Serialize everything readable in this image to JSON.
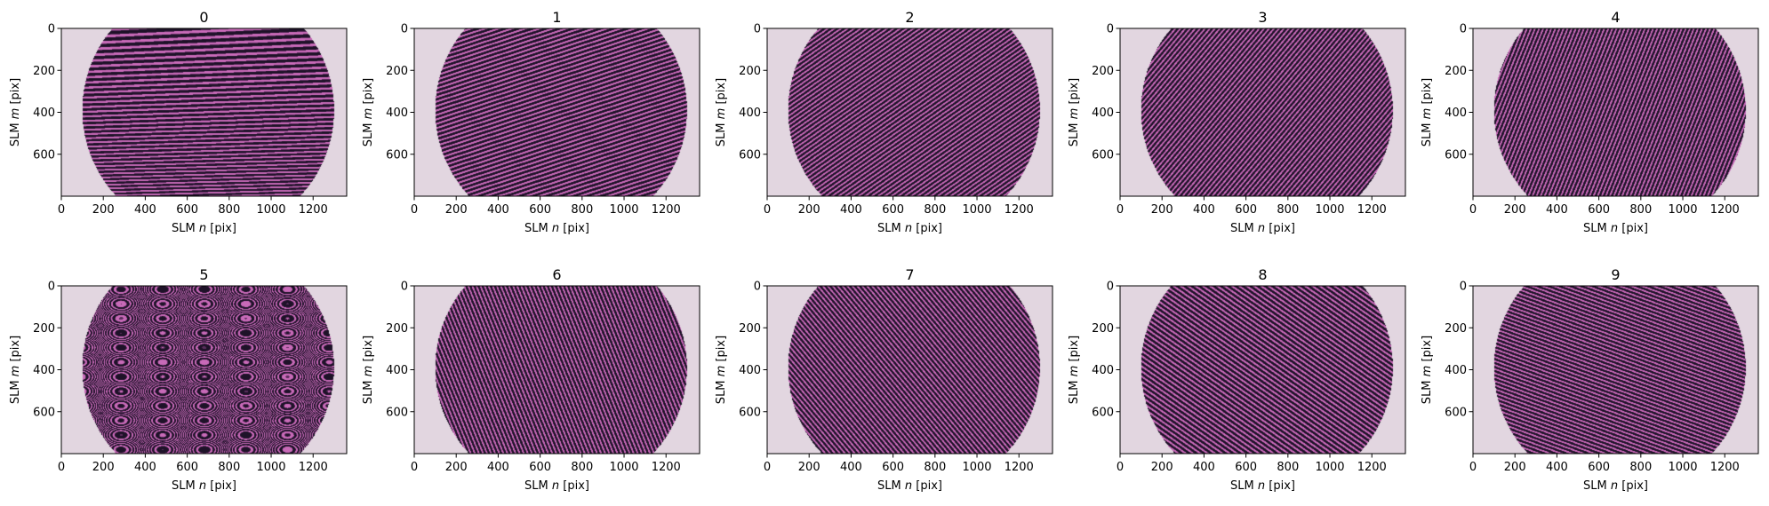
{
  "chart_data": {
    "type": "heatmap",
    "layout": {
      "rows": 2,
      "cols": 5
    },
    "xlabel": {
      "prefix": "SLM ",
      "var": "n",
      "suffix": " [pix]"
    },
    "ylabel": {
      "prefix": "SLM ",
      "var": "m",
      "suffix": " [pix]"
    },
    "image_extent": {
      "x": [
        0,
        1360
      ],
      "y": [
        0,
        800
      ]
    },
    "y_inverted": true,
    "xticks": [
      0,
      200,
      400,
      600,
      800,
      1000,
      1200
    ],
    "yticks": [
      0,
      200,
      400,
      600
    ],
    "aperture": {
      "shape": "circle",
      "center_n": 700,
      "center_m": 390,
      "radius_pix": 600
    },
    "colors": {
      "background": "#e2d6e0",
      "fringe_dark": "#1e1228",
      "fringe_light": "#c86ab8",
      "fringe_mid": "#5a2d5c"
    },
    "panels": [
      {
        "title": "0",
        "pattern": "fringes",
        "orientation_deg": 88,
        "period_pix": 22,
        "curvature": 0.15
      },
      {
        "title": "1",
        "pattern": "fringes",
        "orientation_deg": 72,
        "period_pix": 20,
        "curvature": 0
      },
      {
        "title": "2",
        "pattern": "fringes",
        "orientation_deg": 55,
        "period_pix": 18,
        "curvature": 0
      },
      {
        "title": "3",
        "pattern": "fringes",
        "orientation_deg": 40,
        "period_pix": 18,
        "curvature": 0
      },
      {
        "title": "4",
        "pattern": "fringes",
        "orientation_deg": 22,
        "period_pix": 18,
        "curvature": 0
      },
      {
        "title": "5",
        "pattern": "rings",
        "ring_center_n": 880,
        "ring_center_m": 370,
        "ring_scale": 0.0017
      },
      {
        "title": "6",
        "pattern": "fringes",
        "orientation_deg": -22,
        "period_pix": 18,
        "curvature": 0
      },
      {
        "title": "7",
        "pattern": "fringes",
        "orientation_deg": -40,
        "period_pix": 18,
        "curvature": 0
      },
      {
        "title": "8",
        "pattern": "fringes",
        "orientation_deg": -55,
        "period_pix": 20,
        "curvature": 0
      },
      {
        "title": "9",
        "pattern": "fringes",
        "orientation_deg": -70,
        "period_pix": 18,
        "curvature": 0
      }
    ]
  }
}
